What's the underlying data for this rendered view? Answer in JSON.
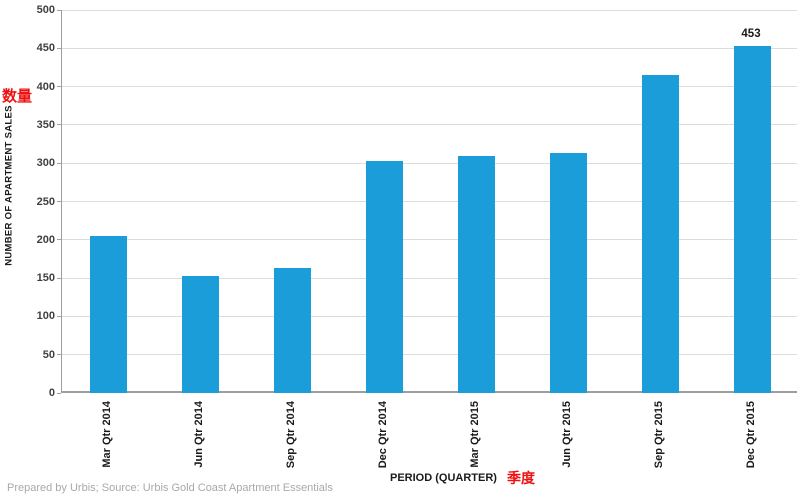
{
  "chart_data": {
    "type": "bar",
    "title": "",
    "categories": [
      "Mar Qtr 2014",
      "Jun Qtr 2014",
      "Sep Qtr 2014",
      "Dec Qtr 2014",
      "Mar Qtr 2015",
      "Jun Qtr 2015",
      "Sep Qtr 2015",
      "Dec Qtr 2015"
    ],
    "values": [
      205,
      153,
      163,
      303,
      310,
      313,
      415,
      453
    ],
    "data_labels": [
      "",
      "",
      "",
      "",
      "",
      "",
      "",
      "453"
    ],
    "xlabel": "PERIOD (QUARTER)",
    "xlabel_cn": "季度",
    "ylabel": "NUMBER OF APARTMENT SALES",
    "ylabel_cn": "数量",
    "ylim": [
      0,
      500
    ],
    "ytick_step": 50,
    "grid": true,
    "legend_position": "none",
    "colors": {
      "bar": "#1b9dd9",
      "gridline": "#dcdcdc",
      "axis": "#9e9e9e",
      "y_tick_text": "#3f3f3f",
      "x_tick_text": "#1a1a1a",
      "accent_red": "#ee1111",
      "value_label": "#1a1a1a"
    }
  },
  "footer": {
    "text": "Prepared by Urbis; Source: Urbis Gold Coast Apartment Essentials"
  }
}
